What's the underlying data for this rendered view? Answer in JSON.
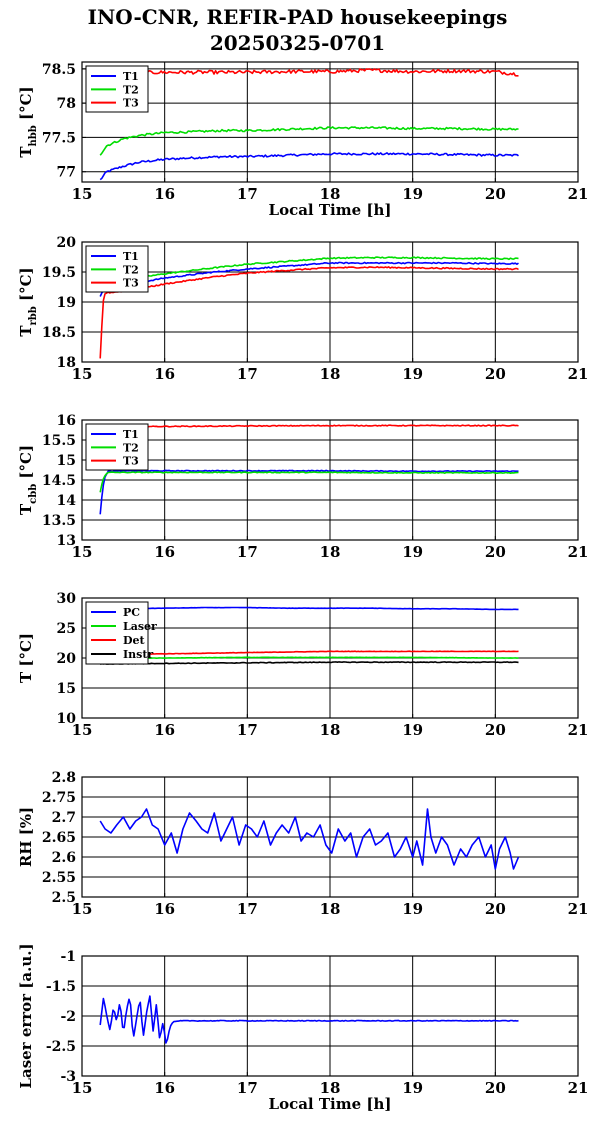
{
  "header": {
    "title": "INO-CNR, REFIR-PAD housekeepings",
    "subtitle": "20250325-0701"
  },
  "chart_data": [
    {
      "type": "line",
      "id": "hbb",
      "xlabel": "Local Time [h]",
      "ylabel_main": "T",
      "ylabel_sub": "hbb",
      "ylabel_tail": " [°C]",
      "xlim": [
        15,
        21
      ],
      "ylim": [
        76.85,
        78.6
      ],
      "xticks": [
        15,
        16,
        17,
        18,
        19,
        20,
        21
      ],
      "yticks": [
        77,
        77.5,
        78,
        78.5
      ],
      "ytick_labels": [
        "77",
        "77.5",
        "78",
        "78.5"
      ],
      "grid": true,
      "legend_position": "top-left",
      "series": [
        {
          "name": "T1",
          "color": "#0000ff",
          "noise": 0.015,
          "x": [
            15.22,
            15.3,
            15.5,
            15.7,
            16.0,
            16.3,
            16.7,
            17.0,
            17.5,
            18.0,
            18.5,
            19.0,
            19.5,
            20.0,
            20.28
          ],
          "y": [
            76.88,
            77.0,
            77.08,
            77.14,
            77.18,
            77.2,
            77.22,
            77.22,
            77.24,
            77.26,
            77.26,
            77.26,
            77.25,
            77.24,
            77.24
          ]
        },
        {
          "name": "T2",
          "color": "#00dd00",
          "noise": 0.015,
          "x": [
            15.22,
            15.3,
            15.5,
            15.7,
            16.0,
            16.3,
            16.7,
            17.0,
            17.5,
            18.0,
            18.5,
            19.0,
            19.5,
            20.0,
            20.28
          ],
          "y": [
            77.25,
            77.38,
            77.48,
            77.53,
            77.57,
            77.58,
            77.6,
            77.6,
            77.62,
            77.64,
            77.64,
            77.63,
            77.63,
            77.62,
            77.62
          ]
        },
        {
          "name": "T3",
          "color": "#ff0000",
          "noise": 0.025,
          "x": [
            15.22,
            15.5,
            16.0,
            16.5,
            17.0,
            17.5,
            18.0,
            18.5,
            19.0,
            19.5,
            20.0,
            20.28
          ],
          "y": [
            78.42,
            78.44,
            78.45,
            78.45,
            78.45,
            78.46,
            78.46,
            78.48,
            78.46,
            78.47,
            78.46,
            78.42
          ]
        }
      ]
    },
    {
      "type": "line",
      "id": "rbb",
      "xlabel": "",
      "ylabel_main": "T",
      "ylabel_sub": "rbb",
      "ylabel_tail": " [°C]",
      "xlim": [
        15,
        21
      ],
      "ylim": [
        18,
        20
      ],
      "xticks": [
        15,
        16,
        17,
        18,
        19,
        20,
        21
      ],
      "yticks": [
        18,
        18.5,
        19,
        19.5,
        20
      ],
      "ytick_labels": [
        "18",
        "18.5",
        "19",
        "19.5",
        "20"
      ],
      "grid": true,
      "legend_position": "top-left",
      "series": [
        {
          "name": "T1",
          "color": "#0000ff",
          "noise": 0.01,
          "x": [
            15.22,
            15.28,
            15.5,
            15.8,
            16.0,
            16.3,
            16.6,
            17.0,
            17.5,
            18.0,
            18.5,
            19.0,
            19.5,
            20.0,
            20.28
          ],
          "y": [
            19.1,
            19.25,
            19.3,
            19.35,
            19.4,
            19.45,
            19.5,
            19.55,
            19.6,
            19.65,
            19.65,
            19.65,
            19.65,
            19.64,
            19.64
          ]
        },
        {
          "name": "T2",
          "color": "#00dd00",
          "noise": 0.01,
          "x": [
            15.22,
            15.28,
            15.5,
            15.8,
            16.0,
            16.3,
            16.6,
            17.0,
            17.5,
            18.0,
            18.5,
            19.0,
            19.5,
            20.0,
            20.28
          ],
          "y": [
            19.2,
            19.33,
            19.38,
            19.43,
            19.47,
            19.52,
            19.57,
            19.63,
            19.68,
            19.73,
            19.74,
            19.74,
            19.73,
            19.72,
            19.72
          ]
        },
        {
          "name": "T3",
          "color": "#ff0000",
          "noise": 0.01,
          "x": [
            15.22,
            15.24,
            15.26,
            15.28,
            15.5,
            15.8,
            16.0,
            16.3,
            16.6,
            17.0,
            17.5,
            18.0,
            18.5,
            19.0,
            19.5,
            20.0,
            20.28
          ],
          "y": [
            18.05,
            18.6,
            19.05,
            19.15,
            19.18,
            19.25,
            19.3,
            19.36,
            19.42,
            19.48,
            19.53,
            19.57,
            19.58,
            19.57,
            19.56,
            19.55,
            19.55
          ]
        }
      ]
    },
    {
      "type": "line",
      "id": "cbb",
      "xlabel": "",
      "ylabel_main": "T",
      "ylabel_sub": "cbb",
      "ylabel_tail": " [°C]",
      "xlim": [
        15,
        21
      ],
      "ylim": [
        13,
        16
      ],
      "xticks": [
        15,
        16,
        17,
        18,
        19,
        20,
        21
      ],
      "yticks": [
        13,
        13.5,
        14,
        14.5,
        15,
        15.5,
        16
      ],
      "ytick_labels": [
        "13",
        "13.5",
        "14",
        "14.5",
        "15",
        "15.5",
        "16"
      ],
      "grid": true,
      "legend_position": "top-left",
      "series": [
        {
          "name": "T1",
          "color": "#0000ff",
          "noise": 0.01,
          "x": [
            15.22,
            15.25,
            15.28,
            15.32,
            15.6,
            16.0,
            17.0,
            18.0,
            19.0,
            20.0,
            20.28
          ],
          "y": [
            13.65,
            14.3,
            14.6,
            14.72,
            14.73,
            14.73,
            14.73,
            14.73,
            14.72,
            14.72,
            14.72
          ]
        },
        {
          "name": "T2",
          "color": "#00dd00",
          "noise": 0.01,
          "x": [
            15.22,
            15.25,
            15.28,
            15.32,
            15.6,
            16.0,
            17.0,
            18.0,
            19.0,
            20.0,
            20.28
          ],
          "y": [
            14.2,
            14.5,
            14.62,
            14.69,
            14.69,
            14.69,
            14.69,
            14.69,
            14.68,
            14.68,
            14.68
          ]
        },
        {
          "name": "T3",
          "color": "#ff0000",
          "noise": 0.01,
          "x": [
            15.22,
            15.27,
            15.3,
            16.0,
            17.0,
            18.0,
            19.0,
            20.0,
            20.28
          ],
          "y": [
            15.82,
            15.88,
            15.83,
            15.84,
            15.85,
            15.86,
            15.86,
            15.86,
            15.86
          ]
        }
      ]
    },
    {
      "type": "line",
      "id": "temps",
      "xlabel": "",
      "ylabel_main": "T [°C]",
      "ylabel_sub": "",
      "ylabel_tail": "",
      "xlim": [
        15,
        21
      ],
      "ylim": [
        10,
        30
      ],
      "xticks": [
        15,
        16,
        17,
        18,
        19,
        20,
        21
      ],
      "yticks": [
        10,
        15,
        20,
        25,
        30
      ],
      "ytick_labels": [
        "10",
        "15",
        "20",
        "25",
        "30"
      ],
      "grid": true,
      "legend_position": "top-left",
      "series": [
        {
          "name": "PC",
          "color": "#0000ff",
          "noise": 0.02,
          "x": [
            15.22,
            16.0,
            16.5,
            17.0,
            17.5,
            18.0,
            18.5,
            19.0,
            19.5,
            20.0,
            20.28
          ],
          "y": [
            28.2,
            28.3,
            28.4,
            28.4,
            28.3,
            28.3,
            28.3,
            28.2,
            28.2,
            28.1,
            28.1
          ]
        },
        {
          "name": "Laser",
          "color": "#00dd00",
          "noise": 0.02,
          "x": [
            15.22,
            16.0,
            17.0,
            18.0,
            19.0,
            20.0,
            20.28
          ],
          "y": [
            19.9,
            20.0,
            20.1,
            20.1,
            20.1,
            20.0,
            20.0
          ]
        },
        {
          "name": "Det",
          "color": "#ff0000",
          "noise": 0.03,
          "x": [
            15.22,
            16.0,
            16.5,
            17.0,
            17.5,
            18.0,
            18.5,
            19.0,
            19.5,
            20.0,
            20.28
          ],
          "y": [
            20.6,
            20.7,
            20.8,
            20.9,
            21.0,
            21.1,
            21.1,
            21.1,
            21.1,
            21.1,
            21.1
          ]
        },
        {
          "name": "Instr",
          "color": "#000000",
          "noise": 0.05,
          "x": [
            15.22,
            16.0,
            17.0,
            18.0,
            19.0,
            20.0,
            20.28
          ],
          "y": [
            19.0,
            19.1,
            19.2,
            19.3,
            19.3,
            19.3,
            19.3
          ]
        }
      ]
    },
    {
      "type": "line",
      "id": "rh",
      "xlabel": "",
      "ylabel_main": "RH [%]",
      "ylabel_sub": "",
      "ylabel_tail": "",
      "xlim": [
        15,
        21
      ],
      "ylim": [
        2.5,
        2.8
      ],
      "xticks": [
        15,
        16,
        17,
        18,
        19,
        20,
        21
      ],
      "yticks": [
        2.5,
        2.55,
        2.6,
        2.65,
        2.7,
        2.75,
        2.8
      ],
      "ytick_labels": [
        "2.5",
        "2.55",
        "2.6",
        "2.65",
        "2.7",
        "2.75",
        "2.8"
      ],
      "grid": true,
      "legend_position": "none",
      "series": [
        {
          "color": "#0000ff",
          "noise": 0.0,
          "x": [
            15.22,
            15.28,
            15.35,
            15.42,
            15.5,
            15.58,
            15.65,
            15.72,
            15.78,
            15.85,
            15.92,
            16.0,
            16.08,
            16.15,
            16.22,
            16.3,
            16.38,
            16.45,
            16.52,
            16.6,
            16.68,
            16.75,
            16.82,
            16.9,
            16.98,
            17.05,
            17.12,
            17.2,
            17.28,
            17.35,
            17.42,
            17.5,
            17.58,
            17.65,
            17.72,
            17.8,
            17.88,
            17.95,
            18.02,
            18.1,
            18.18,
            18.25,
            18.32,
            18.4,
            18.48,
            18.55,
            18.62,
            18.7,
            18.78,
            18.85,
            18.92,
            19.0,
            19.05,
            19.12,
            19.18,
            19.22,
            19.28,
            19.35,
            19.42,
            19.5,
            19.58,
            19.65,
            19.72,
            19.8,
            19.88,
            19.95,
            20.0,
            20.05,
            20.12,
            20.18,
            20.22,
            20.28
          ],
          "y": [
            2.69,
            2.67,
            2.66,
            2.68,
            2.7,
            2.67,
            2.69,
            2.7,
            2.72,
            2.68,
            2.67,
            2.63,
            2.66,
            2.61,
            2.67,
            2.71,
            2.69,
            2.67,
            2.66,
            2.71,
            2.64,
            2.67,
            2.7,
            2.63,
            2.68,
            2.67,
            2.65,
            2.69,
            2.63,
            2.66,
            2.68,
            2.66,
            2.7,
            2.64,
            2.66,
            2.65,
            2.68,
            2.63,
            2.61,
            2.67,
            2.64,
            2.66,
            2.6,
            2.65,
            2.67,
            2.63,
            2.64,
            2.66,
            2.6,
            2.62,
            2.65,
            2.6,
            2.64,
            2.58,
            2.72,
            2.65,
            2.61,
            2.65,
            2.63,
            2.58,
            2.62,
            2.6,
            2.63,
            2.65,
            2.6,
            2.63,
            2.57,
            2.62,
            2.65,
            2.61,
            2.57,
            2.6
          ]
        }
      ]
    },
    {
      "type": "line",
      "id": "laser",
      "xlabel": "Local Time [h]",
      "ylabel_main": "Laser error [a.u.]",
      "ylabel_sub": "",
      "ylabel_tail": "",
      "xlim": [
        15,
        21
      ],
      "ylim": [
        -3,
        -1
      ],
      "xticks": [
        15,
        16,
        17,
        18,
        19,
        20,
        21
      ],
      "yticks": [
        -3,
        -2.5,
        -2,
        -1.5,
        -1
      ],
      "ytick_labels": [
        "-3",
        "-2.5",
        "-2",
        "-1.5",
        "-1"
      ],
      "grid": true,
      "legend_position": "none",
      "series": [
        {
          "color": "#0000ff",
          "noise": 0.006,
          "x": [
            15.22,
            15.26,
            15.3,
            15.34,
            15.38,
            15.42,
            15.46,
            15.5,
            15.54,
            15.58,
            15.62,
            15.66,
            15.7,
            15.74,
            15.78,
            15.82,
            15.86,
            15.9,
            15.94,
            15.98,
            16.02,
            16.06,
            16.1,
            16.2,
            16.5,
            17.0,
            17.5,
            18.0,
            18.5,
            19.0,
            19.5,
            20.0,
            20.28
          ],
          "y": [
            -2.15,
            -1.7,
            -2.0,
            -2.25,
            -1.85,
            -2.1,
            -1.75,
            -2.3,
            -1.9,
            -1.65,
            -2.4,
            -2.05,
            -1.7,
            -2.35,
            -1.95,
            -1.65,
            -2.25,
            -1.8,
            -2.4,
            -2.1,
            -2.5,
            -2.2,
            -2.1,
            -2.08,
            -2.08,
            -2.08,
            -2.08,
            -2.08,
            -2.08,
            -2.08,
            -2.08,
            -2.08,
            -2.08
          ]
        }
      ]
    }
  ]
}
